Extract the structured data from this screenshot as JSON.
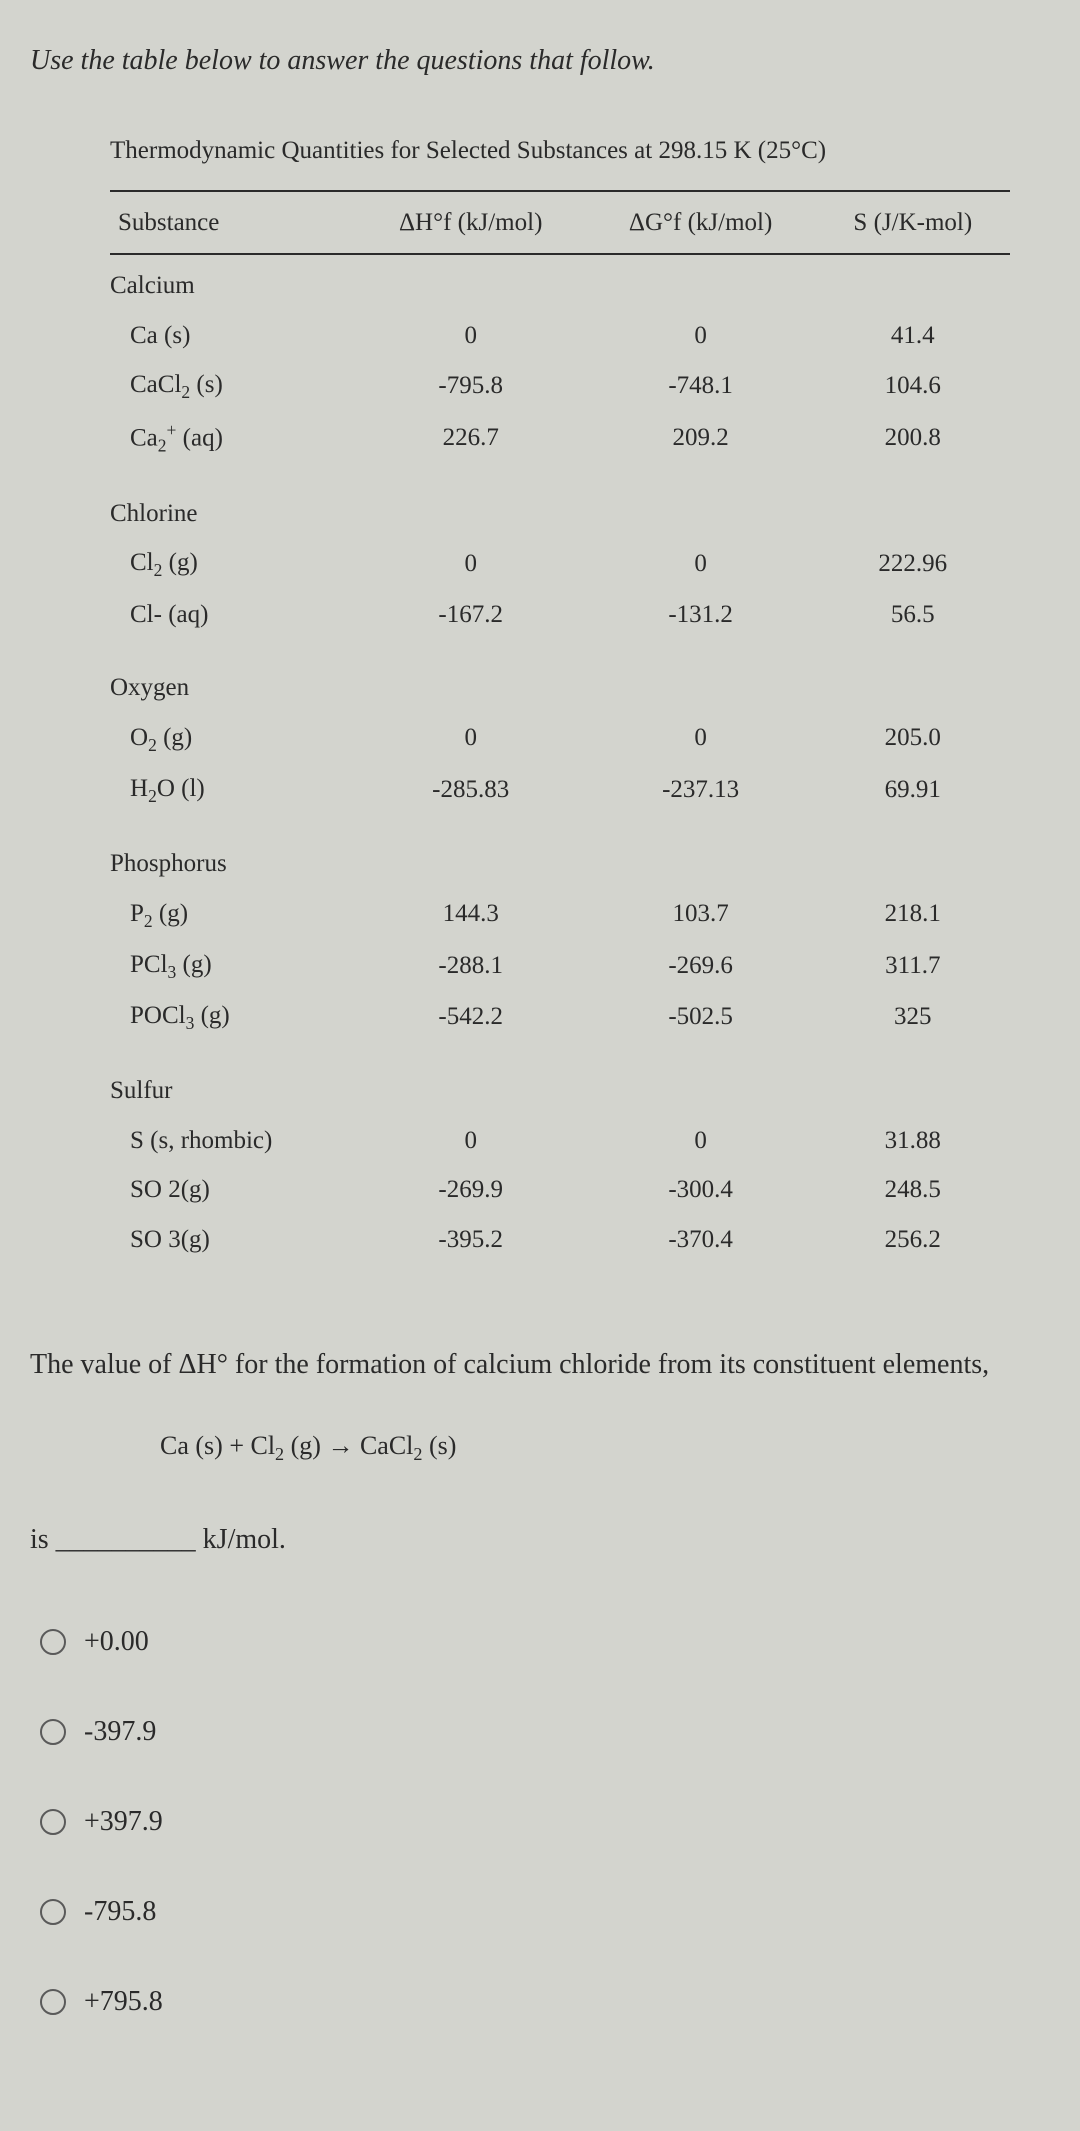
{
  "instruction": "Use the table below to answer the questions that follow.",
  "table": {
    "caption": "Thermodynamic Quantities for Selected Substances at 298.15 K (25°C)",
    "headers": {
      "c1": "Substance",
      "c2": "ΔH°f (kJ/mol)",
      "c3": "ΔG°f (kJ/mol)",
      "c4": "S (J/K-mol)"
    },
    "groups": [
      {
        "name": "Calcium",
        "rows": [
          {
            "s": "Ca (s)",
            "h": "0",
            "g": "0",
            "e": "41.4"
          },
          {
            "s": "CaCl2 (s)",
            "h": "-795.8",
            "g": "-748.1",
            "e": "104.6"
          },
          {
            "s": "Ca2+ (aq)",
            "h": "226.7",
            "g": "209.2",
            "e": "200.8"
          }
        ]
      },
      {
        "name": "Chlorine",
        "rows": [
          {
            "s": "Cl2 (g)",
            "h": "0",
            "g": "0",
            "e": "222.96"
          },
          {
            "s": "Cl- (aq)",
            "h": "-167.2",
            "g": "-131.2",
            "e": "56.5"
          }
        ]
      },
      {
        "name": "Oxygen",
        "rows": [
          {
            "s": "O2 (g)",
            "h": "0",
            "g": "0",
            "e": "205.0"
          },
          {
            "s": "H2O (l)",
            "h": "-285.83",
            "g": "-237.13",
            "e": "69.91"
          }
        ]
      },
      {
        "name": "Phosphorus",
        "rows": [
          {
            "s": "P2 (g)",
            "h": "144.3",
            "g": "103.7",
            "e": "218.1"
          },
          {
            "s": "PCl3 (g)",
            "h": "-288.1",
            "g": "-269.6",
            "e": "311.7"
          },
          {
            "s": "POCl3 (g)",
            "h": "-542.2",
            "g": "-502.5",
            "e": "325"
          }
        ]
      },
      {
        "name": "Sulfur",
        "rows": [
          {
            "s": "S (s, rhombic)",
            "h": "0",
            "g": "0",
            "e": "31.88"
          },
          {
            "s": "SO 2(g)",
            "h": "-269.9",
            "g": "-300.4",
            "e": "248.5"
          },
          {
            "s": "SO 3(g)",
            "h": "-395.2",
            "g": "-370.4",
            "e": "256.2"
          }
        ]
      }
    ]
  },
  "question": "The value of ΔH° for the formation of calcium chloride from its constituent elements,",
  "equation": "Ca (s) + Cl2 (g) → CaCl2 (s)",
  "blank": "is __________ kJ/mol.",
  "options": [
    "+0.00",
    "-397.9",
    "+397.9",
    "-795.8",
    "+795.8"
  ],
  "colors": {
    "background": "#d3d4ce",
    "text": "#2a2a2a",
    "rule": "#2a2a2a",
    "radio_border": "#5a5a5a"
  },
  "typography": {
    "body_fontsize": 26,
    "italic_fontsize": 28,
    "table_fontsize": 25,
    "option_fontsize": 28
  }
}
